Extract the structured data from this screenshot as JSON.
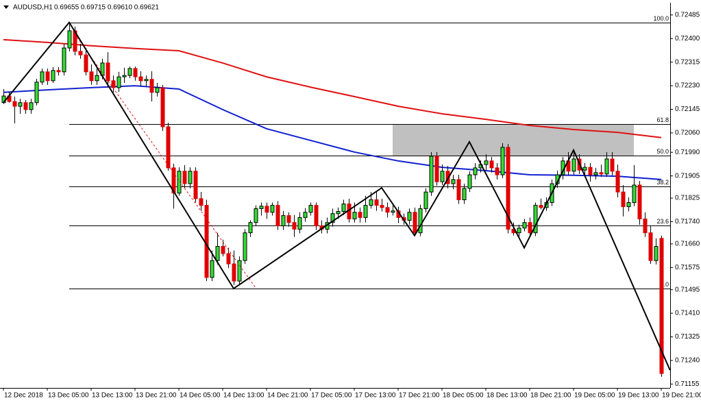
{
  "chart_data": {
    "type": "candlestick",
    "title": "AUDUSD,H1",
    "quote": "0.69655 0.69715 0.69610 0.69621",
    "categories": [
      "12 Dec 2018",
      null,
      null,
      null,
      null,
      null,
      null,
      null,
      "13 Dec 05:00",
      null,
      null,
      null,
      null,
      null,
      null,
      null,
      "13 Dec 13:00",
      null,
      null,
      null,
      null,
      null,
      null,
      null,
      "13 Dec 21:00",
      null,
      null,
      null,
      null,
      null,
      null,
      null,
      "14 Dec 05:00",
      null,
      null,
      null,
      null,
      null,
      null,
      null,
      "14 Dec 13:00",
      null,
      null,
      null,
      null,
      null,
      null,
      null,
      "14 Dec 21:00",
      null,
      null,
      null,
      null,
      null,
      null,
      null,
      "17 Dec 05:00",
      null,
      null,
      null,
      null,
      null,
      null,
      null,
      "17 Dec 13:00",
      null,
      null,
      null,
      null,
      null,
      null,
      null,
      "17 Dec 21:00",
      null,
      null,
      null,
      null,
      null,
      null,
      null,
      "18 Dec 05:00",
      null,
      null,
      null,
      null,
      null,
      null,
      null,
      "18 Dec 13:00",
      null,
      null,
      null,
      null,
      null,
      null,
      null,
      "18 Dec 21:00",
      null,
      null,
      null,
      null,
      null,
      null,
      null,
      "19 Dec 05:00",
      null,
      null,
      null,
      null,
      null,
      null,
      null,
      "19 Dec 13:00",
      null,
      null,
      null,
      null,
      null,
      null,
      null,
      "19 Dec 21:00"
    ],
    "open": [
      0.72169,
      0.72193,
      0.72173,
      0.72156,
      0.72169,
      0.72144,
      0.72169,
      0.72243,
      0.7228,
      0.72248,
      0.72285,
      0.7228,
      0.72366,
      0.72428,
      0.72354,
      0.72341,
      0.7228,
      0.72248,
      0.72267,
      0.72312,
      0.72248,
      0.72223,
      0.72262,
      0.72267,
      0.72292,
      0.72262,
      0.72248,
      0.72253,
      0.72206,
      0.72223,
      0.72082,
      0.71934,
      0.71843,
      0.71922,
      0.71877,
      0.71922,
      0.71823,
      0.71799,
      0.71539,
      0.716,
      0.71651,
      0.71625,
      0.71588,
      0.71526,
      0.716,
      0.717,
      0.71737,
      0.71787,
      0.71796,
      0.71774,
      0.71799,
      0.71725,
      0.71762,
      0.71737,
      0.71713,
      0.71755,
      0.71774,
      0.71799,
      0.71725,
      0.71713,
      0.71737,
      0.71769,
      0.71777,
      0.71804,
      0.7175,
      0.71774,
      0.71755,
      0.71799,
      0.71819,
      0.71799,
      0.71791,
      0.71774,
      0.71779,
      0.71755,
      0.71745,
      0.71774,
      0.717,
      0.71787,
      0.71847,
      0.71976,
      0.71884,
      0.71922,
      0.71877,
      0.71892,
      0.71819,
      0.7186,
      0.71909,
      0.71934,
      0.71946,
      0.71959,
      0.71934,
      0.71909,
      0.72008,
      0.71713,
      0.717,
      0.71717,
      0.71737,
      0.717,
      0.71799,
      0.71791,
      0.71809,
      0.71877,
      0.71909,
      0.71959,
      0.71922,
      0.71966,
      0.71926,
      0.71936,
      0.71909,
      0.71917,
      0.71912,
      0.71966,
      0.71922,
      0.71847,
      0.71794,
      0.71809,
      0.71872,
      0.7175,
      0.717,
      0.716,
      0.7168
    ],
    "high": [
      0.72218,
      0.72208,
      0.72191,
      0.72183,
      0.72178,
      0.72183,
      0.72255,
      0.72292,
      0.72292,
      0.72297,
      0.72297,
      0.72381,
      0.72458,
      0.72443,
      0.72381,
      0.72366,
      0.72307,
      0.72292,
      0.72327,
      0.72351,
      0.72267,
      0.7228,
      0.72295,
      0.72299,
      0.72299,
      0.72282,
      0.72267,
      0.72282,
      0.7224,
      0.72233,
      0.72097,
      0.71949,
      0.71936,
      0.71944,
      0.71936,
      0.71936,
      0.71847,
      0.71819,
      0.71636,
      0.717,
      0.71675,
      0.71646,
      0.71636,
      0.71615,
      0.71713,
      0.71745,
      0.71799,
      0.71809,
      0.71809,
      0.71809,
      0.71814,
      0.71779,
      0.71774,
      0.71764,
      0.71774,
      0.71789,
      0.71809,
      0.71809,
      0.71745,
      0.71755,
      0.71787,
      0.71791,
      0.71819,
      0.71823,
      0.71809,
      0.71791,
      0.71833,
      0.71847,
      0.71847,
      0.71823,
      0.71809,
      0.71804,
      0.71794,
      0.71769,
      0.71787,
      0.71791,
      0.71801,
      0.7186,
      0.71991,
      0.71991,
      0.71946,
      0.71941,
      0.71909,
      0.71909,
      0.71877,
      0.71922,
      0.71951,
      0.71961,
      0.71983,
      0.71973,
      0.71951,
      0.72023,
      0.7202,
      0.71737,
      0.71729,
      0.7175,
      0.71755,
      0.71809,
      0.71823,
      0.71828,
      0.71892,
      0.71924,
      0.71973,
      0.71991,
      0.71991,
      0.71983,
      0.71951,
      0.71951,
      0.71934,
      0.71946,
      0.71991,
      0.71991,
      0.71946,
      0.71872,
      0.71828,
      0.71944,
      0.71887,
      0.71774,
      0.71725,
      0.7168,
      0.7169
    ],
    "low": [
      0.72164,
      0.72169,
      0.72094,
      0.72129,
      0.72129,
      0.72129,
      0.72159,
      0.72233,
      0.72233,
      0.7224,
      0.72267,
      0.72267,
      0.72354,
      0.72339,
      0.72327,
      0.72267,
      0.72233,
      0.72233,
      0.72253,
      0.72223,
      0.72206,
      0.72208,
      0.7224,
      0.72257,
      0.72248,
      0.72228,
      0.72228,
      0.72173,
      0.72191,
      0.72067,
      0.71924,
      0.71787,
      0.71833,
      0.71862,
      0.7186,
      0.71809,
      0.71779,
      0.71526,
      0.71526,
      0.71586,
      0.71615,
      0.71573,
      0.71512,
      0.71514,
      0.71588,
      0.71685,
      0.71725,
      0.71762,
      0.7175,
      0.71762,
      0.7171,
      0.7171,
      0.71722,
      0.71685,
      0.71698,
      0.7174,
      0.71762,
      0.7171,
      0.71698,
      0.71698,
      0.71722,
      0.7175,
      0.71764,
      0.71737,
      0.71737,
      0.71737,
      0.71737,
      0.71787,
      0.71779,
      0.71777,
      0.71755,
      0.71762,
      0.71735,
      0.71729,
      0.71729,
      0.71688,
      0.71688,
      0.71774,
      0.71833,
      0.7187,
      0.71872,
      0.7186,
      0.71857,
      0.71804,
      0.71804,
      0.71847,
      0.71892,
      0.71917,
      0.71926,
      0.71917,
      0.71892,
      0.71897,
      0.71698,
      0.7169,
      0.71685,
      0.71705,
      0.71685,
      0.71688,
      0.71784,
      0.71779,
      0.71796,
      0.71862,
      0.71892,
      0.71907,
      0.71909,
      0.71912,
      0.71909,
      0.71884,
      0.71892,
      0.71902,
      0.71902,
      0.71907,
      0.71828,
      0.71759,
      0.71777,
      0.71796,
      0.71729,
      0.71685,
      0.71588,
      0.71586,
      0.71181
    ],
    "close": [
      0.72193,
      0.72173,
      0.72156,
      0.72169,
      0.72144,
      0.72169,
      0.72243,
      0.7228,
      0.72248,
      0.72285,
      0.7228,
      0.72366,
      0.72428,
      0.72354,
      0.72341,
      0.7228,
      0.72248,
      0.72267,
      0.72312,
      0.72248,
      0.72223,
      0.72262,
      0.72267,
      0.72292,
      0.72262,
      0.72248,
      0.72253,
      0.72206,
      0.72223,
      0.72082,
      0.71934,
      0.71843,
      0.71922,
      0.71877,
      0.71922,
      0.71823,
      0.71799,
      0.71539,
      0.716,
      0.71651,
      0.71625,
      0.71588,
      0.71526,
      0.716,
      0.717,
      0.71737,
      0.71787,
      0.71796,
      0.71774,
      0.71799,
      0.71725,
      0.71762,
      0.71737,
      0.71713,
      0.71755,
      0.71774,
      0.71799,
      0.71725,
      0.71713,
      0.71737,
      0.71769,
      0.71777,
      0.71804,
      0.7175,
      0.71774,
      0.71755,
      0.71799,
      0.71819,
      0.71799,
      0.71791,
      0.71774,
      0.71779,
      0.71755,
      0.71745,
      0.71774,
      0.717,
      0.71787,
      0.71847,
      0.71976,
      0.71884,
      0.71922,
      0.71877,
      0.71892,
      0.71819,
      0.7186,
      0.71909,
      0.71934,
      0.71946,
      0.71959,
      0.71934,
      0.71909,
      0.72008,
      0.71713,
      0.717,
      0.71717,
      0.71737,
      0.717,
      0.71799,
      0.71791,
      0.71809,
      0.71877,
      0.71909,
      0.71959,
      0.71922,
      0.71966,
      0.71926,
      0.71936,
      0.71909,
      0.71917,
      0.71912,
      0.71966,
      0.71922,
      0.71847,
      0.71794,
      0.71809,
      0.71872,
      0.7175,
      0.717,
      0.716,
      0.71651,
      0.71193
    ],
    "up_color": "#33dd33",
    "down_color": "#e00000",
    "ylim": [
      0.71141,
      0.72529
    ],
    "yticks": [
      0.72485,
      {
        "value": 0.724,
        "label": "0.72400"
      },
      0.72315,
      {
        "value": 0.7223,
        "label": "0.72230"
      },
      0.72145,
      {
        "value": 0.7206,
        "label": "0.72060"
      },
      {
        "value": 0.7199,
        "label": "0.71990"
      },
      0.71905,
      0.71825,
      {
        "value": 0.7174,
        "label": "0.71740"
      },
      {
        "value": 0.7166,
        "label": "0.71660"
      },
      0.71575,
      0.71495,
      {
        "value": 0.7141,
        "label": "0.71410"
      },
      0.71325,
      {
        "value": 0.7124,
        "label": "0.71240"
      },
      0.71155
    ],
    "zone": {
      "color": "#c0c0c0",
      "x": [
        71,
        115
      ],
      "values": [
        0.72092,
        0.71978
      ]
    },
    "moving_averages": [
      {
        "color": "#e01010",
        "x": [
          0,
          8,
          16,
          24,
          32,
          40,
          48,
          56,
          64,
          72,
          80,
          88,
          96,
          104,
          112,
          120
        ],
        "values": [
          0.72396,
          0.72386,
          0.72374,
          0.72364,
          0.72356,
          0.72312,
          0.72262,
          0.72225,
          0.72191,
          0.72156,
          0.72129,
          0.72109,
          0.72087,
          0.72072,
          0.72062,
          0.72043
        ]
      },
      {
        "color": "#1020d0",
        "x": [
          0,
          8,
          16,
          24,
          32,
          40,
          48,
          56,
          64,
          72,
          80,
          88,
          96,
          104,
          112,
          120
        ],
        "values": [
          0.72206,
          0.72215,
          0.72223,
          0.7223,
          0.72218,
          0.72144,
          0.72075,
          0.72033,
          0.71991,
          0.71959,
          0.71936,
          0.71924,
          0.71909,
          0.71907,
          0.71904,
          0.71892
        ]
      }
    ],
    "fibonacci": {
      "x_start": 12,
      "levels": [
        {
          "label": "100.0",
          "value": 0.72458
        },
        {
          "label": "61.8",
          "value": 0.72092
        },
        {
          "label": "50.0",
          "value": 0.71979
        },
        {
          "label": "38.2",
          "value": 0.71867
        },
        {
          "label": "23.6",
          "value": 0.71727
        },
        {
          "label": "0.0",
          "value": 0.71499
        }
      ]
    },
    "zigzag": {
      "color": "#000000",
      "x": [
        0,
        12,
        42,
        69,
        75,
        85,
        95,
        104,
        121.6
      ],
      "values": [
        0.72169,
        0.72458,
        0.71499,
        0.71862,
        0.7169,
        0.72028,
        0.71646,
        0.71998,
        0.71205
      ]
    },
    "trend_line": {
      "color": "#e01010",
      "x": [
        13,
        46
      ],
      "values": [
        0.72416,
        0.71502
      ]
    }
  }
}
